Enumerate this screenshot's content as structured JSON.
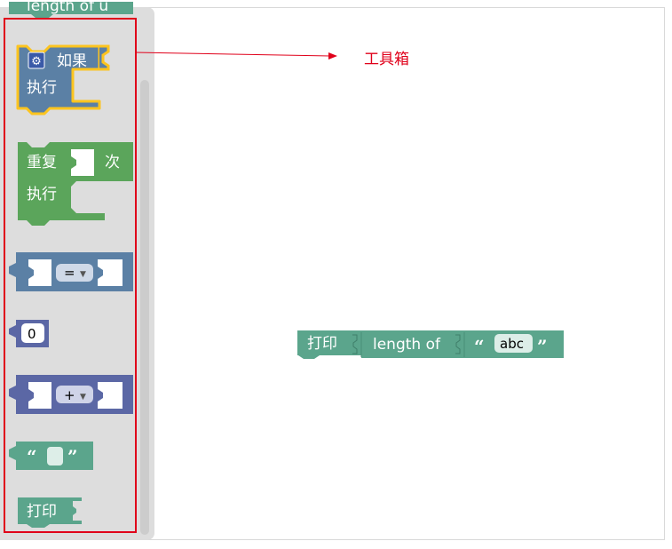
{
  "toolbox": {
    "partial_label": "length of u",
    "if_block": {
      "if_label": "如果",
      "do_label": "执行"
    },
    "repeat_block": {
      "repeat_label": "重复",
      "times_label": "次",
      "do_label": "执行"
    },
    "compare_block": {
      "operator": "="
    },
    "number_block": {
      "value": "0"
    },
    "arith_block": {
      "operator": "+"
    },
    "text_block": {
      "open_quote": "“",
      "close_quote": "”"
    },
    "print_block": {
      "label": "打印"
    }
  },
  "annotation": {
    "label": "工具箱"
  },
  "workspace": {
    "print_label": "打印",
    "length_label": "length of",
    "open_quote": "“",
    "text_value": "abc",
    "close_quote": "”"
  },
  "colors": {
    "logic": "#5b80a5",
    "loop": "#5ba55b",
    "math": "#5b67a5",
    "text": "#5ba58c",
    "highlight": "#fcc41f",
    "annotation": "#e0001a"
  },
  "icons": {
    "mutator": "gear-icon"
  }
}
